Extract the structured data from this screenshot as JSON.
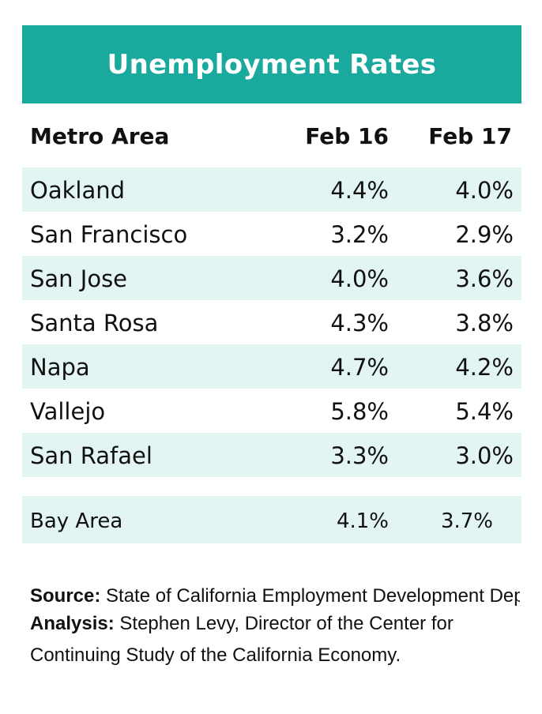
{
  "chart_data": {
    "type": "table",
    "title": "Unemployment Rates",
    "columns": [
      "Metro Area",
      "Feb 16",
      "Feb 17"
    ],
    "rows": [
      {
        "area": "Oakland",
        "feb16": "4.4%",
        "feb17": "4.0%"
      },
      {
        "area": "San Francisco",
        "feb16": "3.2%",
        "feb17": "2.9%"
      },
      {
        "area": "San Jose",
        "feb16": "4.0%",
        "feb17": "3.6%"
      },
      {
        "area": "Santa Rosa",
        "feb16": "4.3%",
        "feb17": "3.8%"
      },
      {
        "area": "Napa",
        "feb16": "4.7%",
        "feb17": "4.2%"
      },
      {
        "area": "Vallejo",
        "feb16": "5.8%",
        "feb17": "5.4%"
      },
      {
        "area": "San Rafael",
        "feb16": "3.3%",
        "feb17": "3.0%"
      }
    ],
    "total": {
      "area": "Bay Area",
      "feb16": "4.1%",
      "feb17": "3.7%"
    }
  },
  "notes": {
    "source_label": "Source:",
    "source_text": "State of California Employment Development Department.",
    "analysis_label": "Analysis:",
    "analysis_text": "Stephen Levy, Director of the Center for Continuing Study of the California Economy."
  },
  "colors": {
    "title_bar": "#1aa99d",
    "row_shade": "#e3f5f3",
    "title_text": "#ffffff"
  }
}
